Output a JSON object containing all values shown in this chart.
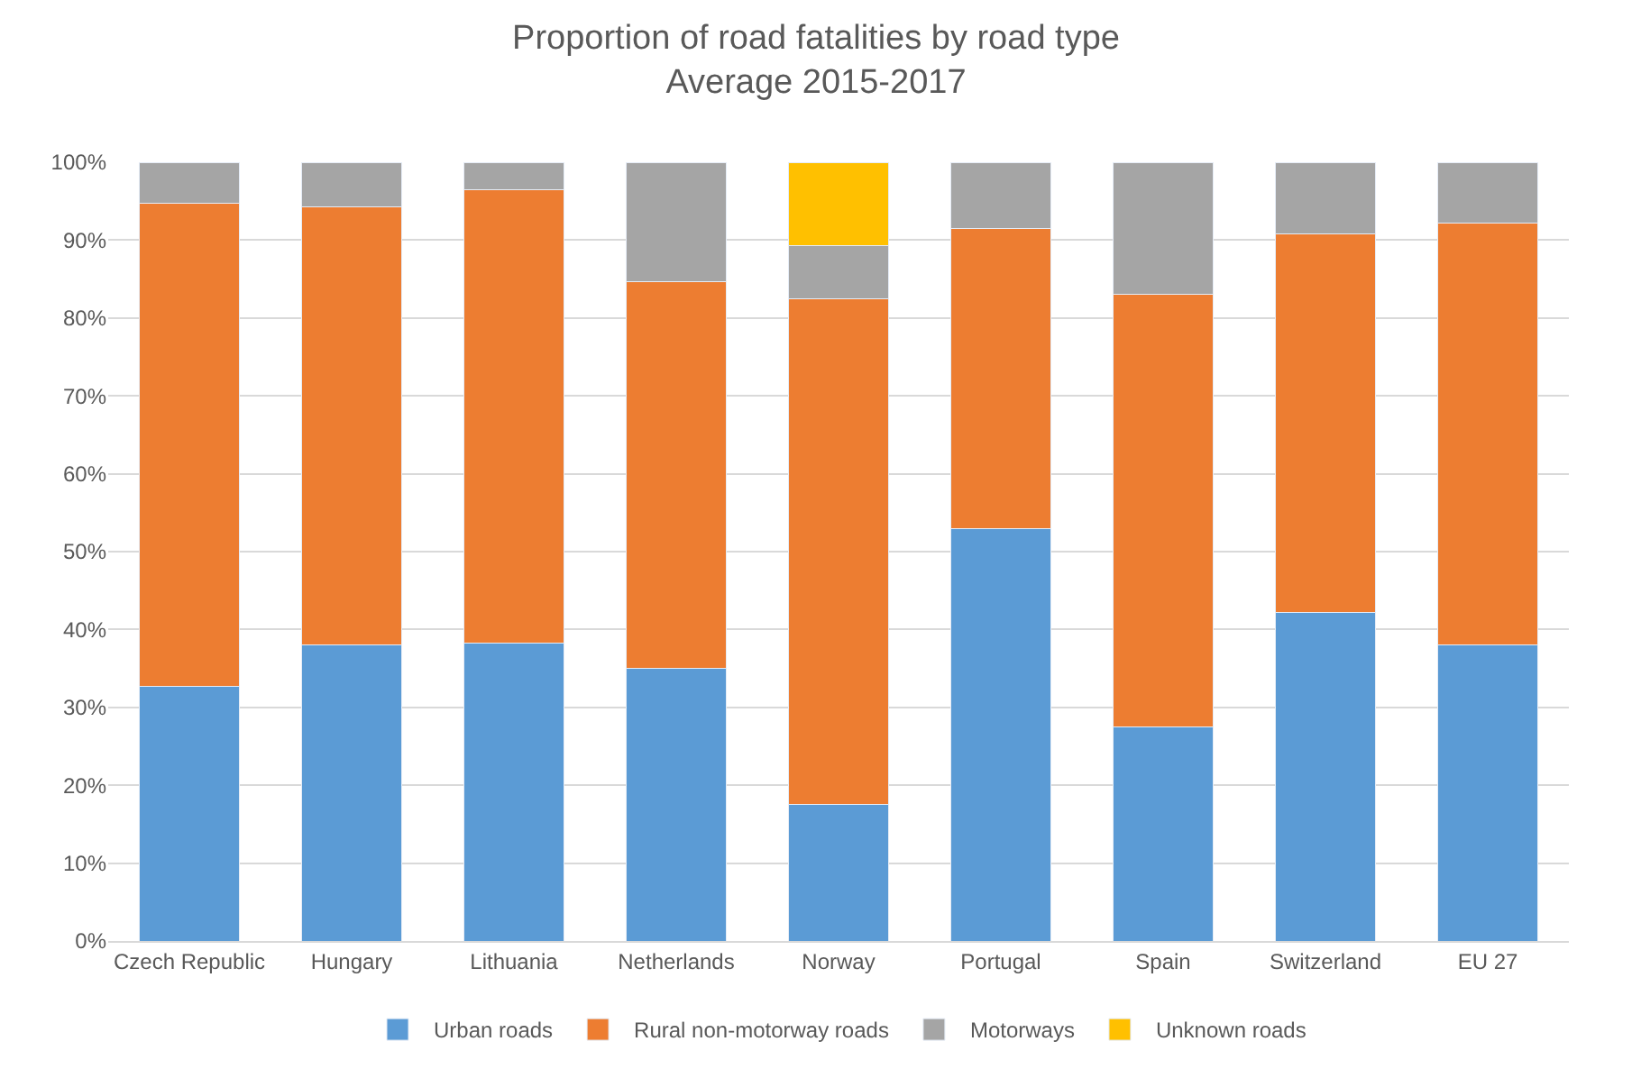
{
  "chart_data": {
    "type": "bar",
    "stacked": true,
    "title": "Proportion of road fatalities by road type\nAverage 2015-2017",
    "categories": [
      "Czech Republic",
      "Hungary",
      "Lithuania",
      "Netherlands",
      "Norway",
      "Portugal",
      "Spain",
      "Switzerland",
      "EU 27"
    ],
    "series": [
      {
        "name": "Urban roads",
        "color": "#5b9bd5",
        "values": [
          32.7,
          38.0,
          38.3,
          35.0,
          17.5,
          53.0,
          27.5,
          42.2,
          38.0
        ]
      },
      {
        "name": "Rural non-motorway roads",
        "color": "#ed7d31",
        "values": [
          62.0,
          56.3,
          58.2,
          49.7,
          65.0,
          38.5,
          55.5,
          48.6,
          54.2
        ]
      },
      {
        "name": "Motorways",
        "color": "#a5a5a5",
        "values": [
          5.3,
          5.7,
          3.5,
          15.3,
          6.8,
          8.5,
          17.0,
          9.2,
          7.8
        ]
      },
      {
        "name": "Unknown roads",
        "color": "#ffc000",
        "values": [
          null,
          null,
          null,
          null,
          10.7,
          null,
          null,
          null,
          null
        ]
      }
    ],
    "ylim": [
      0,
      100
    ],
    "yticks": [
      {
        "value": 0,
        "label": "0%"
      },
      {
        "value": 10,
        "label": "10%"
      },
      {
        "value": 20,
        "label": "20%"
      },
      {
        "value": 30,
        "label": "30%"
      },
      {
        "value": 40,
        "label": "40%"
      },
      {
        "value": 50,
        "label": "50%"
      },
      {
        "value": 60,
        "label": "60%"
      },
      {
        "value": 70,
        "label": "70%"
      },
      {
        "value": 80,
        "label": "80%"
      },
      {
        "value": 90,
        "label": "90%"
      },
      {
        "value": 100,
        "label": "100%"
      }
    ],
    "grid": "y",
    "legend": "bottom"
  }
}
